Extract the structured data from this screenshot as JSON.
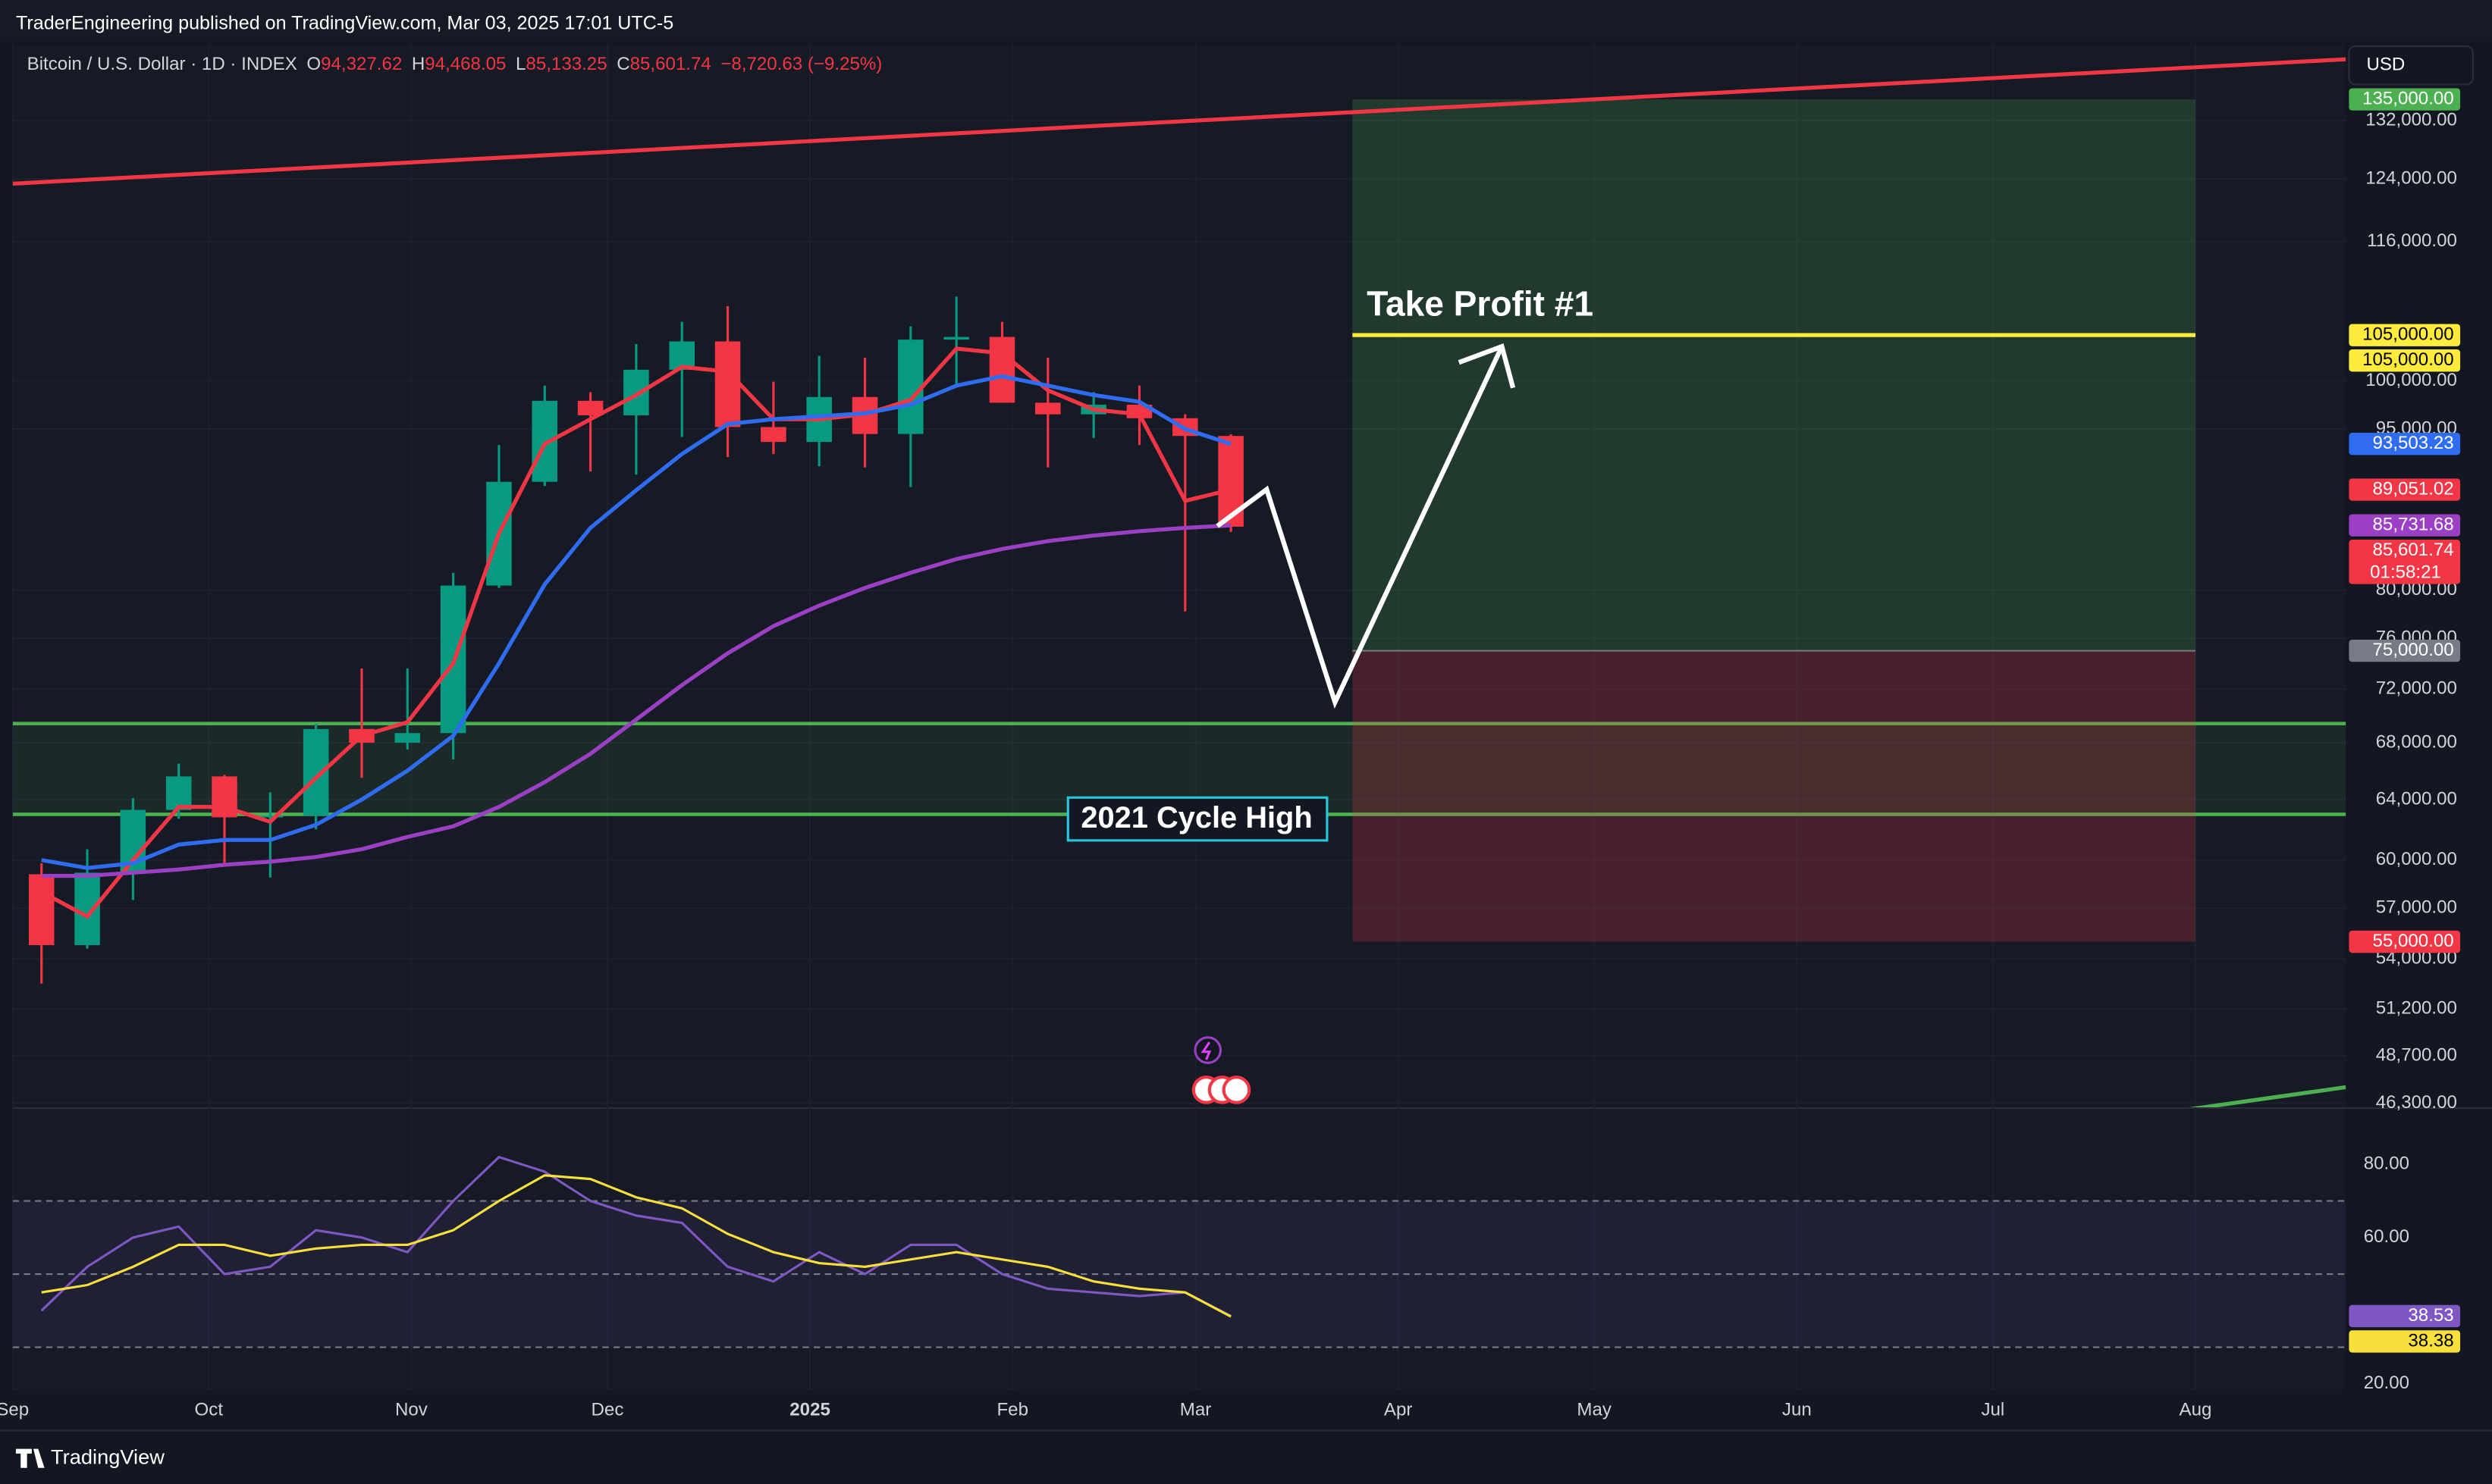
{
  "header": {
    "publisher_line": "TraderEngineering published on TradingView.com, Mar 03, 2025 17:01 UTC-5",
    "symbol": "Bitcoin / U.S. Dollar · 1D · INDEX",
    "ohlc": [
      {
        "key": "O",
        "value": "94,327.62"
      },
      {
        "key": "H",
        "value": "94,468.05"
      },
      {
        "key": "L",
        "value": "85,133.25"
      },
      {
        "key": "C",
        "value": "85,601.74"
      }
    ],
    "change": "−8,720.63 (−9.25%)",
    "currency": "USD"
  },
  "footer": {
    "brand": "TradingView"
  },
  "chart_data": [
    {
      "type": "candlestick",
      "x": [
        "2024-09-02",
        "2024-09-09",
        "2024-09-16",
        "2024-09-23",
        "2024-09-30",
        "2024-10-07",
        "2024-10-14",
        "2024-10-21",
        "2024-10-28",
        "2024-11-04",
        "2024-11-11",
        "2024-11-18",
        "2024-11-25",
        "2024-12-02",
        "2024-12-09",
        "2024-12-16",
        "2024-12-23",
        "2024-12-30",
        "2025-01-06",
        "2025-01-13",
        "2025-01-20",
        "2025-01-27",
        "2025-02-03",
        "2025-02-10",
        "2025-02-17",
        "2025-02-24",
        "2025-03-03"
      ],
      "open": [
        59100,
        54800,
        59200,
        63300,
        65600,
        62800,
        62900,
        69000,
        68000,
        68700,
        80400,
        89800,
        97900,
        96400,
        101200,
        104300,
        95200,
        93700,
        98300,
        94500,
        104500,
        104800,
        97700,
        96500,
        97500,
        96100,
        94300
      ],
      "high": [
        59800,
        60700,
        64100,
        66500,
        65700,
        64500,
        69400,
        73600,
        73600,
        81500,
        93400,
        99500,
        98800,
        104000,
        106500,
        108300,
        99900,
        102700,
        102500,
        106000,
        109400,
        106500,
        102500,
        98800,
        99500,
        96500,
        94468
      ],
      "low": [
        52600,
        54600,
        57500,
        62700,
        59800,
        58900,
        62000,
        65500,
        67500,
        66800,
        80200,
        89400,
        90800,
        90500,
        94200,
        92200,
        92500,
        91300,
        91200,
        89300,
        99500,
        97800,
        91200,
        94100,
        93400,
        78200,
        85133
      ],
      "close": [
        54800,
        59200,
        63300,
        65600,
        62800,
        62900,
        69000,
        68000,
        68700,
        80400,
        89800,
        97900,
        96400,
        101200,
        104300,
        95200,
        93700,
        98300,
        94500,
        104500,
        104800,
        97700,
        96500,
        97500,
        96100,
        94300,
        85602
      ],
      "up_color": "#089981",
      "down_color": "#f23645",
      "lines": [
        {
          "color": "#f23645",
          "values": [
            58000,
            56500,
            60000,
            63500,
            63500,
            62500,
            65500,
            68500,
            69500,
            74000,
            85000,
            93500,
            96000,
            98500,
            101500,
            101000,
            96000,
            96000,
            96500,
            98000,
            103500,
            103000,
            99000,
            97000,
            96500,
            88000,
            89051
          ]
        },
        {
          "color": "#2f6cf0",
          "values": [
            60000,
            59500,
            59800,
            61000,
            61300,
            61300,
            62300,
            64000,
            66000,
            68500,
            74000,
            80500,
            85500,
            89000,
            92500,
            95500,
            96000,
            96300,
            96600,
            97500,
            99500,
            100500,
            99500,
            98500,
            97800,
            95000,
            93503
          ]
        },
        {
          "color": "#9b3fc4",
          "values": [
            59000,
            59000,
            59200,
            59400,
            59700,
            59900,
            60200,
            60700,
            61500,
            62200,
            63500,
            65200,
            67200,
            69700,
            72300,
            74800,
            77000,
            78700,
            80200,
            81500,
            82700,
            83600,
            84300,
            84800,
            85200,
            85500,
            85731
          ]
        }
      ],
      "xlim": [
        "2024-09-01",
        "2025-08-24"
      ],
      "xticks": [
        {
          "value": "2024-09-01",
          "label": "Sep"
        },
        {
          "value": "2024-10-01",
          "label": "Oct"
        },
        {
          "value": "2024-11-01",
          "label": "Nov"
        },
        {
          "value": "2024-12-01",
          "label": "Dec"
        },
        {
          "value": "2025-01-01",
          "label": "2025"
        },
        {
          "value": "2025-02-01",
          "label": "Feb"
        },
        {
          "value": "2025-03-01",
          "label": "Mar"
        },
        {
          "value": "2025-04-01",
          "label": "Apr"
        },
        {
          "value": "2025-05-01",
          "label": "May"
        },
        {
          "value": "2025-06-01",
          "label": "Jun"
        },
        {
          "value": "2025-07-01",
          "label": "Jul"
        },
        {
          "value": "2025-08-01",
          "label": "Aug"
        }
      ],
      "ylim": [
        46100,
        143100
      ],
      "log_scale": true,
      "grid": true,
      "yticks": [
        {
          "value": 132000,
          "label": "132,000.00"
        },
        {
          "value": 124000,
          "label": "124,000.00"
        },
        {
          "value": 116000,
          "label": "116,000.00"
        },
        {
          "value": 100000,
          "label": "100,000.00"
        },
        {
          "value": 95000,
          "label": "95,000.00"
        },
        {
          "value": 80000,
          "label": "80,000.00"
        },
        {
          "value": 76000,
          "label": "76,000.00"
        },
        {
          "value": 72000,
          "label": "72,000.00"
        },
        {
          "value": 68000,
          "label": "68,000.00"
        },
        {
          "value": 64000,
          "label": "64,000.00"
        },
        {
          "value": 60000,
          "label": "60,000.00"
        },
        {
          "value": 57000,
          "label": "57,000.00"
        },
        {
          "value": 54000,
          "label": "54,000.00"
        },
        {
          "value": 51200,
          "label": "51,200.00"
        },
        {
          "value": 48700,
          "label": "48,700.00"
        },
        {
          "value": 46300,
          "label": "46,300.00"
        }
      ],
      "trendlines": [
        {
          "color": "#f23645",
          "x": [
            "2024-09-01",
            "2025-08-24"
          ],
          "values": [
            123400,
            140900
          ]
        },
        {
          "color": "#4caf50",
          "x": [
            "2025-07-31",
            "2025-08-24"
          ],
          "values": [
            46000,
            47100
          ]
        }
      ],
      "zone": {
        "color": "#4caf50",
        "values": [
          63000,
          69400
        ],
        "label": "2021 Cycle High"
      },
      "position": {
        "x": [
          "2025-03-25",
          "2025-08-01"
        ],
        "entry": 75000,
        "target": 135000,
        "stop": 55000,
        "target_color": "#4caf50",
        "stop_color": "#f23645"
      },
      "take_profit": {
        "label": "Take Profit #1",
        "value": 105000,
        "color": "#ffeb3b"
      },
      "price_tags": [
        {
          "value": 135000,
          "label": "135,000.00",
          "color": "#4caf50"
        },
        {
          "value": 105000,
          "label": "105,000.00",
          "color": "#ffeb3b"
        },
        {
          "value": 105000,
          "label": "105,000.00",
          "color": "#ffeb3b"
        },
        {
          "value": 93503.23,
          "label": "93,503.23",
          "color": "#2f6cf0"
        },
        {
          "value": 89051.02,
          "label": "89,051.02",
          "color": "#f23645"
        },
        {
          "value": 85731.68,
          "label": "85,731.68",
          "color": "#9b3fc4"
        },
        {
          "value": 85601.74,
          "label": "85,601.74",
          "color": "#f23645",
          "countdown": "01:58:21"
        },
        {
          "value": 75000,
          "label": "75,000.00",
          "color": "#787b86"
        },
        {
          "value": 55000,
          "label": "55,000.00",
          "color": "#f23645"
        }
      ]
    },
    {
      "type": "line",
      "x": [
        "2024-09-02",
        "2024-09-09",
        "2024-09-16",
        "2024-09-23",
        "2024-09-30",
        "2024-10-07",
        "2024-10-14",
        "2024-10-21",
        "2024-10-28",
        "2024-11-04",
        "2024-11-11",
        "2024-11-18",
        "2024-11-25",
        "2024-12-02",
        "2024-12-09",
        "2024-12-16",
        "2024-12-23",
        "2024-12-30",
        "2025-01-06",
        "2025-01-13",
        "2025-01-20",
        "2025-01-27",
        "2025-02-03",
        "2025-02-10",
        "2025-02-17",
        "2025-02-24",
        "2025-03-03"
      ],
      "series": [
        {
          "color": "#7e57c2",
          "values": [
            40,
            52,
            60,
            63,
            50,
            52,
            62,
            60,
            56,
            70,
            82,
            78,
            70,
            66,
            64,
            52,
            48,
            56,
            50,
            58,
            58,
            50,
            46,
            45,
            44,
            45,
            38.53
          ]
        },
        {
          "color": "#f7e03c",
          "values": [
            45,
            47,
            52,
            58,
            58,
            55,
            57,
            58,
            58,
            62,
            70,
            77,
            76,
            71,
            68,
            61,
            56,
            53,
            52,
            54,
            56,
            54,
            52,
            48,
            46,
            45,
            38.38
          ]
        }
      ],
      "xlim": [
        "2024-09-01",
        "2025-08-24"
      ],
      "ylim": [
        18.3,
        95.6
      ],
      "yticks": [
        {
          "value": 80,
          "label": "80.00"
        },
        {
          "value": 60,
          "label": "60.00"
        },
        {
          "value": 20,
          "label": "20.00"
        }
      ],
      "band_levels": [
        30,
        50,
        70
      ],
      "price_tags": [
        {
          "value": 38.53,
          "label": "38.53",
          "color": "#7e57c2"
        },
        {
          "value": 38.38,
          "label": "38.38",
          "color": "#f7e03c"
        }
      ]
    }
  ]
}
